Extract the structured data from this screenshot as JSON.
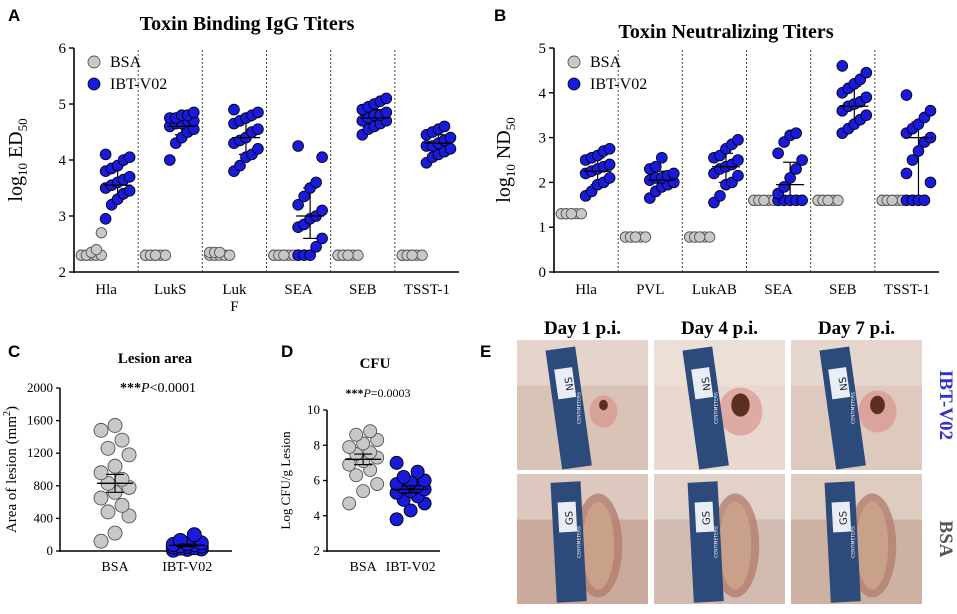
{
  "colors": {
    "bsa": "#c8c8c8",
    "ibt": "#1a1adc",
    "ibt_label": "#3333cc",
    "bsa_label": "#555555"
  },
  "panels": {
    "A": "A",
    "B": "B",
    "C": "C",
    "D": "D",
    "E": "E"
  },
  "chart_data": [
    {
      "id": "A",
      "type": "scatter",
      "title": "Toxin Binding IgG Titers",
      "ylabel_main": "log",
      "ylabel_sub": "10",
      "ylabel_tail": " ED",
      "ylabel_tail_sub": "50",
      "ylim": [
        2,
        6
      ],
      "yticks": [
        2,
        3,
        4,
        5,
        6
      ],
      "categories": [
        "Hla",
        "LukS",
        "Luk F",
        "SEA",
        "SEB",
        "TSST-1"
      ],
      "category_lines": [
        [
          "Hla"
        ],
        [
          "LukS"
        ],
        [
          "Luk",
          "F"
        ],
        [
          "SEA"
        ],
        [
          "SEB"
        ],
        [
          "TSST-1"
        ]
      ],
      "legend": [
        "BSA",
        "IBT-V02"
      ],
      "series": [
        {
          "name": "BSA",
          "groups": [
            [
              2.3,
              2.3,
              2.3,
              2.3,
              2.3,
              2.3,
              2.3,
              2.35,
              2.4,
              2.7
            ],
            [
              2.3,
              2.3,
              2.3,
              2.3,
              2.3,
              2.3,
              2.3,
              2.3
            ],
            [
              2.3,
              2.3,
              2.3,
              2.3,
              2.3,
              2.35,
              2.35,
              2.35
            ],
            [
              2.3,
              2.3,
              2.3,
              2.3,
              2.3,
              2.3,
              2.3,
              2.3
            ],
            [
              2.3,
              2.3,
              2.3,
              2.3,
              2.3,
              2.3,
              2.3,
              2.3
            ],
            [
              2.3,
              2.3,
              2.3,
              2.3,
              2.3,
              2.3,
              2.3,
              2.3
            ]
          ]
        },
        {
          "name": "IBT-V02",
          "groups": [
            [
              2.95,
              3.2,
              3.3,
              3.4,
              3.45,
              3.5,
              3.55,
              3.6,
              3.65,
              3.7,
              3.8,
              3.85,
              3.9,
              4.0,
              4.05,
              4.1
            ],
            [
              4.0,
              4.3,
              4.4,
              4.5,
              4.55,
              4.6,
              4.65,
              4.65,
              4.7,
              4.7,
              4.75,
              4.75,
              4.8,
              4.8,
              4.85
            ],
            [
              3.8,
              3.9,
              4.05,
              4.1,
              4.2,
              4.3,
              4.35,
              4.4,
              4.5,
              4.55,
              4.65,
              4.7,
              4.75,
              4.8,
              4.85,
              4.9
            ],
            [
              2.3,
              2.3,
              2.3,
              2.45,
              2.6,
              2.8,
              2.85,
              2.95,
              3.0,
              3.1,
              3.2,
              3.35,
              3.5,
              3.6,
              4.05,
              4.25
            ],
            [
              4.45,
              4.55,
              4.6,
              4.65,
              4.7,
              4.7,
              4.75,
              4.8,
              4.8,
              4.85,
              4.9,
              4.95,
              5.0,
              5.05,
              5.1
            ],
            [
              3.95,
              4.05,
              4.1,
              4.15,
              4.2,
              4.25,
              4.25,
              4.3,
              4.35,
              4.4,
              4.45,
              4.5,
              4.55,
              4.6
            ]
          ]
        }
      ],
      "ibt_center": [
        3.55,
        4.6,
        4.4,
        3.0,
        4.75,
        4.3
      ],
      "ibt_err": [
        [
          3.3,
          3.9
        ],
        [
          4.45,
          4.8
        ],
        [
          4.1,
          4.7
        ],
        [
          2.6,
          3.5
        ],
        [
          4.6,
          4.9
        ],
        [
          4.15,
          4.45
        ]
      ]
    },
    {
      "id": "B",
      "type": "scatter",
      "title": "Toxin Neutralizing Titers",
      "ylabel_main": "log",
      "ylabel_sub": "10",
      "ylabel_tail": " ND",
      "ylabel_tail_sub": "50",
      "ylim": [
        0,
        5
      ],
      "yticks": [
        0,
        1,
        2,
        3,
        4,
        5
      ],
      "categories": [
        "Hla",
        "PVL",
        "LukAB",
        "SEA",
        "SEB",
        "TSST-1"
      ],
      "category_lines": [
        [
          "Hla"
        ],
        [
          "PVL"
        ],
        [
          "LukAB"
        ],
        [
          "SEA"
        ],
        [
          "SEB"
        ],
        [
          "TSST-1"
        ]
      ],
      "legend": [
        "BSA",
        "IBT-V02"
      ],
      "series": [
        {
          "name": "BSA",
          "groups": [
            [
              1.3,
              1.3,
              1.3,
              1.3,
              1.3,
              1.3,
              1.3,
              1.3
            ],
            [
              0.78,
              0.78,
              0.78,
              0.78,
              0.78,
              0.78,
              0.78,
              0.78
            ],
            [
              0.78,
              0.78,
              0.78,
              0.78,
              0.78,
              0.78,
              0.78,
              0.78
            ],
            [
              1.6,
              1.6,
              1.6,
              1.6,
              1.6,
              1.6,
              1.6,
              1.6
            ],
            [
              1.6,
              1.6,
              1.6,
              1.6,
              1.6,
              1.6,
              1.6,
              1.6
            ],
            [
              1.6,
              1.6,
              1.6,
              1.6,
              1.6,
              1.6,
              1.6,
              1.6
            ]
          ]
        },
        {
          "name": "IBT-V02",
          "groups": [
            [
              1.7,
              1.8,
              1.95,
              2.0,
              2.1,
              2.2,
              2.25,
              2.3,
              2.35,
              2.4,
              2.5,
              2.55,
              2.6,
              2.7,
              2.75
            ],
            [
              1.65,
              1.8,
              1.9,
              1.95,
              2.0,
              2.05,
              2.1,
              2.1,
              2.15,
              2.2,
              2.3,
              2.35,
              2.55
            ],
            [
              1.55,
              1.7,
              1.95,
              2.0,
              2.15,
              2.2,
              2.3,
              2.35,
              2.4,
              2.5,
              2.55,
              2.6,
              2.75,
              2.85,
              2.95
            ],
            [
              1.6,
              1.6,
              1.6,
              1.6,
              1.6,
              1.75,
              1.9,
              2.1,
              2.3,
              2.5,
              2.65,
              2.9,
              3.05,
              3.1
            ],
            [
              3.1,
              3.2,
              3.3,
              3.4,
              3.5,
              3.6,
              3.7,
              3.75,
              3.8,
              3.9,
              4.0,
              4.1,
              4.2,
              4.3,
              4.45,
              4.6
            ],
            [
              1.6,
              1.6,
              1.6,
              1.6,
              2.0,
              2.2,
              2.5,
              2.7,
              2.9,
              3.0,
              3.1,
              3.2,
              3.3,
              3.45,
              3.6,
              3.95
            ]
          ]
        }
      ],
      "ibt_center": [
        2.25,
        2.05,
        2.35,
        1.95,
        3.7,
        3.0
      ],
      "ibt_err": [
        [
          1.95,
          2.55
        ],
        [
          1.9,
          2.25
        ],
        [
          2.0,
          2.65
        ],
        [
          1.6,
          2.45
        ],
        [
          3.3,
          4.15
        ],
        [
          1.6,
          3.35
        ]
      ]
    },
    {
      "id": "C",
      "type": "scatter",
      "title": "Lesion area",
      "annotation_prefix": "***",
      "annotation_p": "P",
      "annotation_rest": "<0.0001",
      "ylabel": "Area of lesion (mm",
      "ylabel_sup": "2",
      "ylabel_end": ")",
      "ylim": [
        0,
        2000
      ],
      "yticks": [
        0,
        400,
        800,
        1200,
        1600,
        2000
      ],
      "categories": [
        "BSA",
        "IBT-V02"
      ],
      "groups": [
        [
          120,
          220,
          430,
          480,
          560,
          650,
          720,
          780,
          830,
          880,
          960,
          1040,
          1180,
          1260,
          1360,
          1480,
          1540
        ],
        [
          10,
          20,
          25,
          35,
          40,
          50,
          55,
          60,
          65,
          75,
          80,
          90,
          100,
          130,
          200
        ]
      ],
      "mean": [
        830,
        70
      ],
      "sem": [
        110,
        15
      ]
    },
    {
      "id": "D",
      "type": "scatter",
      "title": "CFU",
      "annotation_prefix": "***",
      "annotation_p": "P",
      "annotation_rest": "=0.0003",
      "ylabel": "Log CFU/g Lesion",
      "ylim": [
        2,
        10
      ],
      "yticks": [
        2,
        4,
        6,
        8,
        10
      ],
      "categories": [
        "BSA",
        "IBT-V02"
      ],
      "groups": [
        [
          4.7,
          5.4,
          5.8,
          6.3,
          6.6,
          6.9,
          7.1,
          7.3,
          7.5,
          7.6,
          7.9,
          8.1,
          8.3,
          8.6,
          8.8
        ],
        [
          3.8,
          4.3,
          4.7,
          4.9,
          5.1,
          5.3,
          5.4,
          5.5,
          5.6,
          5.7,
          5.8,
          5.9,
          6.0,
          6.2,
          6.5,
          7.0
        ]
      ],
      "mean": [
        7.2,
        5.5
      ],
      "sem": [
        0.3,
        0.2
      ]
    }
  ],
  "photos": {
    "columns": [
      "Day 1 p.i.",
      "Day 4 p.i.",
      "Day 7 p.i."
    ],
    "rows": [
      "IBT-V02",
      "BSA"
    ],
    "label_mark": "NS",
    "ruler_mark": "CENTIMETERS",
    "ruler_bottom_mark": "GS"
  }
}
